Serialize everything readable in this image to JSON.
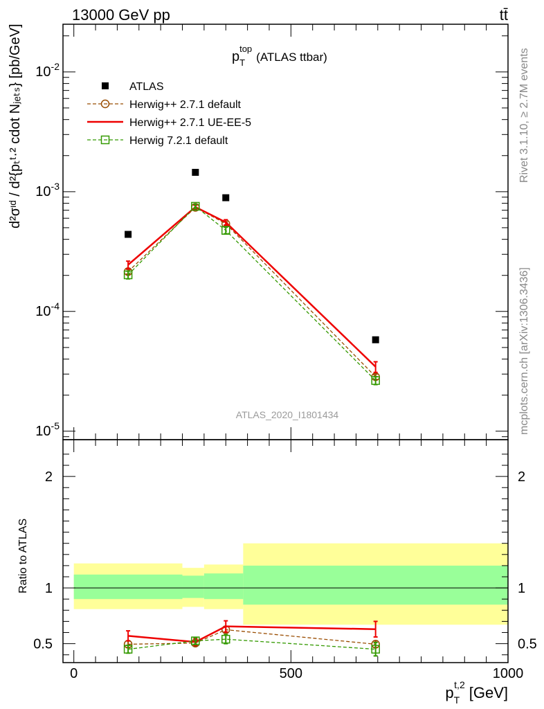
{
  "header": {
    "left": "13000 GeV pp",
    "right": "tt̄"
  },
  "side_labels": {
    "rivet": "Rivet 3.1.10, ≥ 2.7M events",
    "mcplots": "mcplots.cern.ch [arXiv:1306.3436]"
  },
  "chart_data": [
    {
      "type": "line",
      "title": {
        "main": "p",
        "sup": "top",
        "sub": "T",
        "rest": "(ATLAS ttbar)"
      },
      "ylabel": "d²σᶦᵈ / d²{pₜᵗ·² cdot Nⱼₑₜₛ} [pb/GeV]",
      "yscale": "log",
      "xlim": [
        -25,
        1000
      ],
      "ylim": [
        8.5e-06,
        0.025
      ],
      "y_ticks": [
        {
          "value": 0.01,
          "base": "10",
          "exp": "-2"
        },
        {
          "value": 0.001,
          "base": "10",
          "exp": "-3"
        },
        {
          "value": 0.0001,
          "base": "10",
          "exp": "-4"
        },
        {
          "value": 1e-05,
          "base": "10",
          "exp": "-5"
        }
      ],
      "watermark": "ATLAS_2020_I1801434",
      "x": [
        125,
        280,
        350,
        695
      ],
      "series": [
        {
          "name": "ATLAS",
          "color": "#000000",
          "style": "marker-square",
          "values": [
            0.00044,
            0.00145,
            0.00089,
            5.8e-05
          ],
          "err": [
            0,
            0,
            0,
            0
          ]
        },
        {
          "name": "Herwig++ 2.7.1 default",
          "color": "#994c00",
          "style": "dashed-circle",
          "values": [
            0.000215,
            0.00074,
            0.00054,
            2.85e-05
          ],
          "err": [
            1e-05,
            3e-05,
            2e-05,
            1.5e-06
          ]
        },
        {
          "name": "Herwig++ 2.7.1 UE-EE-5",
          "color": "#ee0000",
          "style": "solid",
          "values": [
            0.000245,
            0.000745,
            0.000555,
            3.45e-05
          ],
          "err": [
            1.8e-05,
            3e-05,
            2.8e-05,
            3.5e-06
          ]
        },
        {
          "name": "Herwig 7.2.1 default",
          "color": "#339900",
          "style": "dashed-square",
          "values": [
            0.000202,
            0.000755,
            0.000475,
            2.65e-05
          ],
          "err": [
            1.5e-05,
            3e-05,
            3e-05,
            2e-06
          ]
        }
      ]
    },
    {
      "type": "line",
      "ylabel": "Ratio to ATLAS",
      "xlabel": {
        "main": "p",
        "sup": "t,2",
        "sub": "T",
        "unit": "[GeV]"
      },
      "xlim": [
        -25,
        1000
      ],
      "ylim": [
        0.33,
        2.33
      ],
      "x_ticks": [
        0,
        500,
        1000
      ],
      "y_ticks": [
        0.5,
        1,
        2
      ],
      "bins": [
        0,
        250,
        300,
        390,
        1000
      ],
      "band_outer": [
        [
          0.81,
          1.22
        ],
        [
          0.83,
          1.18
        ],
        [
          0.81,
          1.21
        ],
        [
          0.67,
          1.4
        ]
      ],
      "band_inner": [
        [
          0.9,
          1.12
        ],
        [
          0.91,
          1.11
        ],
        [
          0.9,
          1.13
        ],
        [
          0.85,
          1.2
        ]
      ],
      "band_colors": {
        "outer": "#ffff99",
        "inner": "#99ff99"
      },
      "x": [
        125,
        280,
        350,
        695
      ],
      "series": [
        {
          "name": "Herwig++ 2.7.1 default",
          "color": "#994c00",
          "style": "dashed-circle",
          "values": [
            0.495,
            0.505,
            0.625,
            0.495
          ],
          "err": [
            0.03,
            0.025,
            0.03,
            0.03
          ]
        },
        {
          "name": "Herwig++ 2.7.1 UE-EE-5",
          "color": "#ee0000",
          "style": "solid",
          "values": [
            0.57,
            0.515,
            0.655,
            0.63
          ],
          "err": [
            0.045,
            0.03,
            0.05,
            0.07
          ]
        },
        {
          "name": "Herwig 7.2.1 default",
          "color": "#339900",
          "style": "dashed-square",
          "values": [
            0.45,
            0.525,
            0.54,
            0.45
          ],
          "err": [
            0.035,
            0.03,
            0.04,
            0.06
          ]
        }
      ]
    }
  ]
}
